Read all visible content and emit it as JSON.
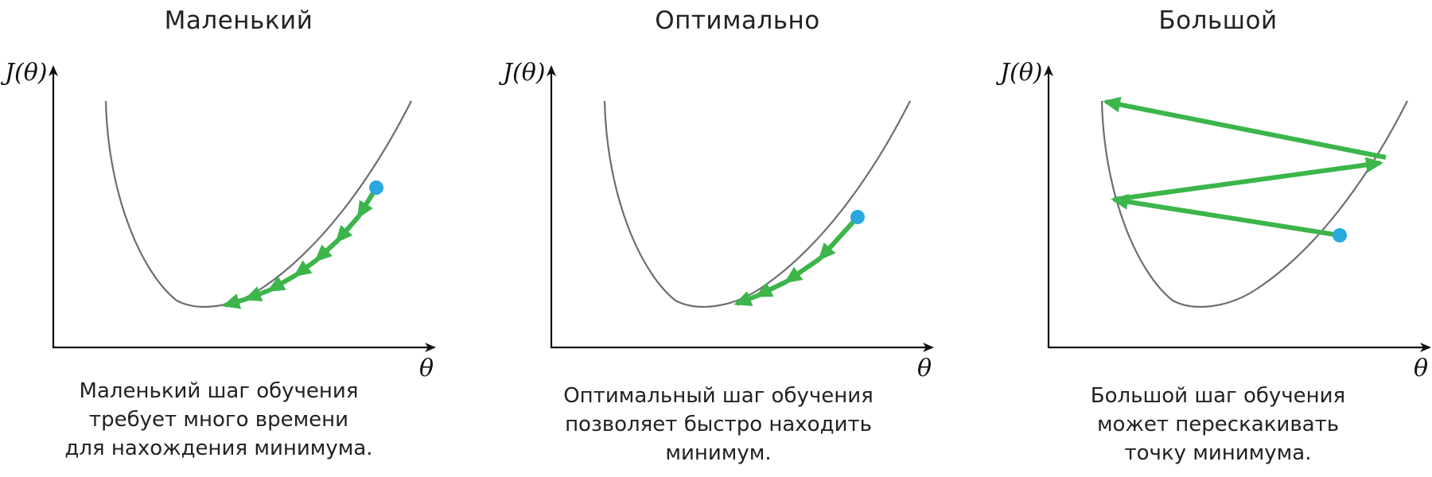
{
  "panels": [
    {
      "title": "Маленький",
      "y_axis_label": "J(θ)",
      "x_axis_label": "θ",
      "caption": "Маленький шаг обучения\nтребует много времени\nдля нахождения минимума."
    },
    {
      "title": "Оптимально",
      "y_axis_label": "J(θ)",
      "x_axis_label": "θ",
      "caption": "Оптимальный шаг обучения\nпозволяет быстро находить\nминимум."
    },
    {
      "title": "Большой",
      "y_axis_label": "J(θ)",
      "x_axis_label": "θ",
      "caption": "Большой шаг обучения\nможет перескакивать\nточку минимума."
    }
  ],
  "colors": {
    "curve": "#6e6e6e",
    "step_arrow": "#3cb54a",
    "start_point": "#29a8e0",
    "axis": "#111111"
  }
}
